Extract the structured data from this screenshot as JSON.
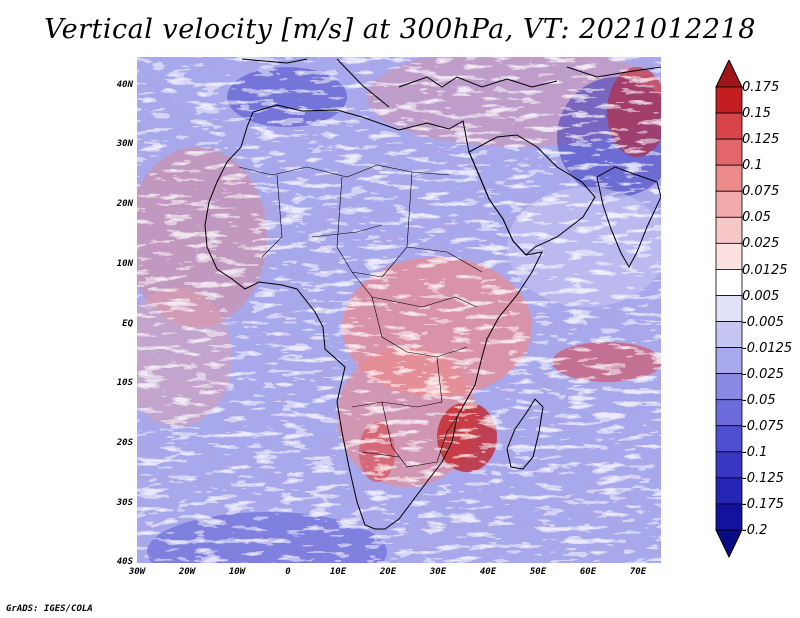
{
  "title": "Vertical velocity [m/s] at 300hPa, VT: 2021012218",
  "footer": "GrADS: IGES/COLA",
  "lat_ticks": [
    "40N",
    "30N",
    "20N",
    "10N",
    "EQ",
    "10S",
    "20S",
    "30S",
    "40S"
  ],
  "lon_ticks": [
    "30W",
    "20W",
    "10W",
    "0",
    "10E",
    "20E",
    "30E",
    "40E",
    "50E",
    "60E",
    "70E"
  ],
  "colorbar": {
    "labels": [
      "0.175",
      "0.15",
      "0.125",
      "0.1",
      "0.075",
      "0.05",
      "0.025",
      "0.0125",
      "0.005",
      "-0.005",
      "-0.0125",
      "-0.025",
      "-0.05",
      "-0.075",
      "-0.1",
      "-0.125",
      "-0.175",
      "-0.2"
    ],
    "colors": [
      "#c41e22",
      "#d9444a",
      "#e4666b",
      "#ec8a8c",
      "#f3aaab",
      "#f7c6c6",
      "#fbe0e0",
      "#ffffff",
      "#e1e1f8",
      "#c6c6f3",
      "#a8a8ec",
      "#8a8ae4",
      "#6b6bdb",
      "#4f4fd1",
      "#3737c4",
      "#2424b5",
      "#12129c"
    ]
  },
  "icons": {
    "colorbar_top": "triangle-up-icon",
    "colorbar_bottom": "triangle-down-icon"
  }
}
